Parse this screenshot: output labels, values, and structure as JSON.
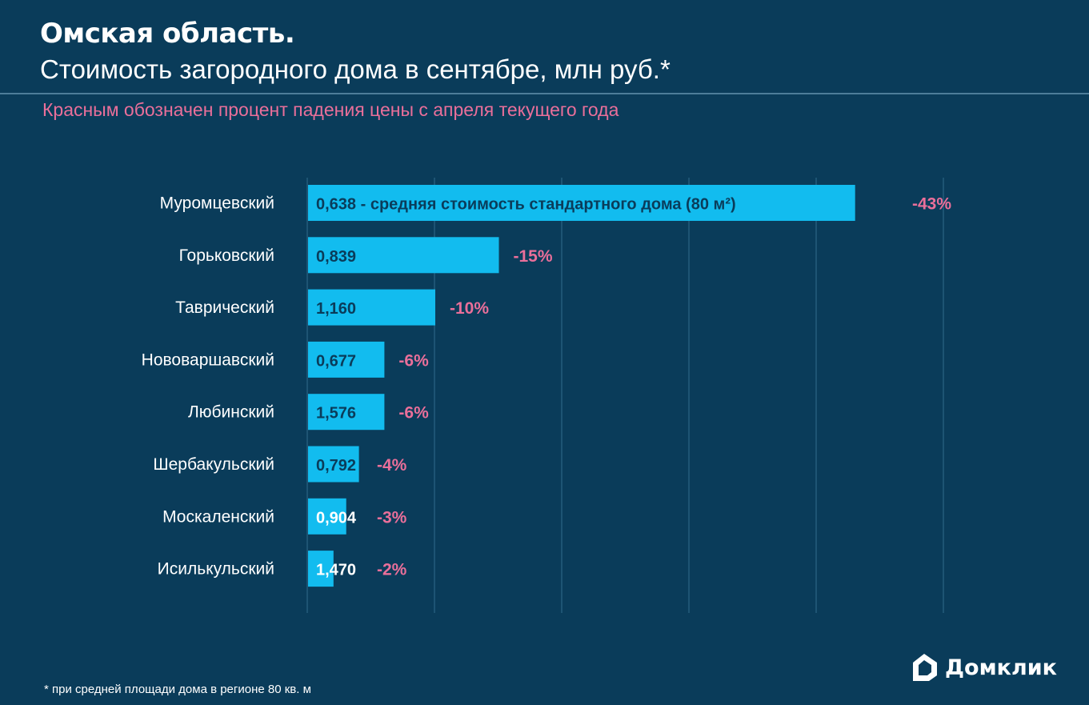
{
  "header": {
    "title": "Омская область.",
    "subtitle": "Стоимость загородного дома в сентябре, млн руб.*",
    "note": "Красным обозначен процент падения цены с апреля текущего года"
  },
  "footer": {
    "footnote": "* при средней площади дома в регионе 80 кв. м",
    "logo_text": "Домклик"
  },
  "colors": {
    "background": "#0a3c5a",
    "bar": "#12bcef",
    "decline": "#ea6f9a",
    "grid": "#2b6484"
  },
  "chart_data": {
    "type": "bar",
    "orientation": "horizontal",
    "title": "Стоимость загородного дома в сентябре, млн руб.*",
    "categories": [
      "Муромцевский",
      "Горьковский",
      "Таврический",
      "Нововаршавский",
      "Любинский",
      "Шербакульский",
      "Москаленский",
      "Исилькульский"
    ],
    "series": [
      {
        "name": "Процент падения цены с апреля",
        "values": [
          43,
          15,
          10,
          6,
          6,
          4,
          3,
          2
        ]
      }
    ],
    "price_labels": [
      "0,638 - средняя стоимость стандартного дома (80 м²)",
      "0,839",
      "1,160",
      "0,677",
      "1,576",
      "0,792",
      "0,904",
      "1,470"
    ],
    "decline_labels": [
      "-43%",
      "-15%",
      "-10%",
      "-6%",
      "-6%",
      "-4%",
      "-3%",
      "-2%"
    ],
    "xlim": [
      0,
      50
    ],
    "grid": true
  }
}
